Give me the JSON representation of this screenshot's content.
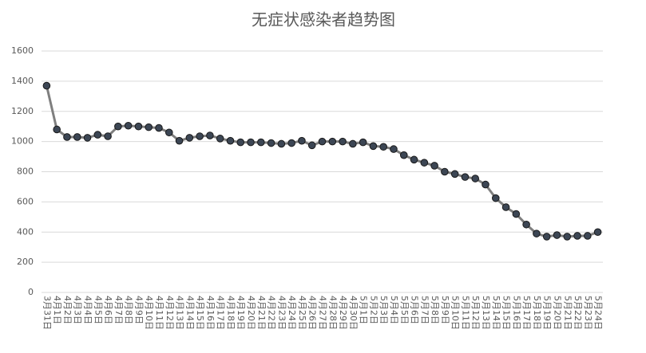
{
  "chart_data": {
    "type": "line",
    "title": "无症状感染者趋势图",
    "categories": [
      "3月31日",
      "4月1日",
      "4月2日",
      "4月3日",
      "4月4日",
      "4月5日",
      "4月6日",
      "4月7日",
      "4月8日",
      "4月9日",
      "4月10日",
      "4月11日",
      "4月12日",
      "4月13日",
      "4月14日",
      "4月15日",
      "4月16日",
      "4月17日",
      "4月18日",
      "4月19日",
      "4月20日",
      "4月21日",
      "4月22日",
      "4月23日",
      "4月24日",
      "4月25日",
      "4月26日",
      "4月27日",
      "4月28日",
      "4月29日",
      "4月30日",
      "5月1日",
      "5月2日",
      "5月3日",
      "5月4日",
      "5月5日",
      "5月6日",
      "5月7日",
      "5月8日",
      "5月9日",
      "5月10日",
      "5月11日",
      "5月12日",
      "5月13日",
      "5月14日",
      "5月15日",
      "5月16日",
      "5月17日",
      "5月18日",
      "5月19日",
      "5月20日",
      "5月21日",
      "5月22日",
      "5月23日",
      "5月24日"
    ],
    "values": [
      1370,
      1080,
      1030,
      1030,
      1025,
      1045,
      1035,
      1100,
      1105,
      1100,
      1095,
      1090,
      1060,
      1005,
      1025,
      1035,
      1040,
      1020,
      1005,
      995,
      995,
      995,
      990,
      985,
      990,
      1005,
      975,
      1000,
      1000,
      1000,
      985,
      995,
      970,
      965,
      950,
      910,
      880,
      860,
      840,
      800,
      785,
      765,
      755,
      715,
      625,
      565,
      520,
      450,
      390,
      370,
      380,
      370,
      375,
      375,
      400
    ],
    "color": "#7f7f7f",
    "marker_color": "#3c4654",
    "ylim": [
      0,
      1600
    ],
    "yticks": [
      0,
      200,
      400,
      600,
      800,
      1000,
      1200,
      1400,
      1600
    ],
    "grid": true
  }
}
